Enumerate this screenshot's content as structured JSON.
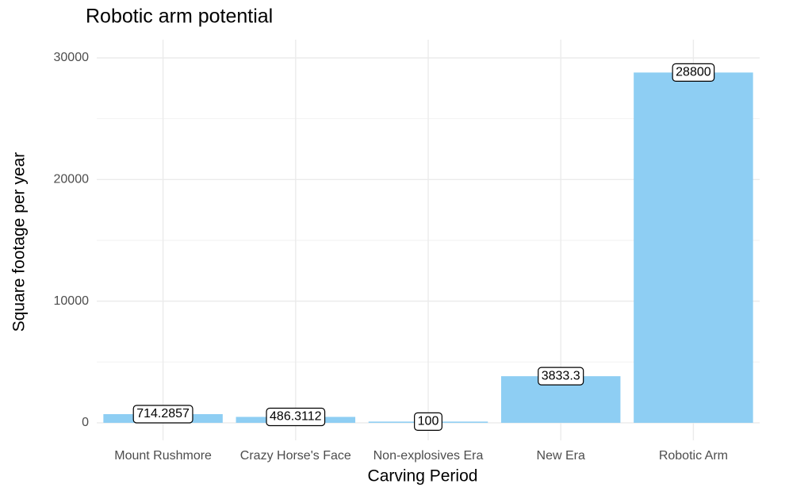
{
  "chart_data": {
    "type": "bar",
    "title": "Robotic arm potential",
    "x_label": "Carving Period",
    "y_label": "Square footage per year",
    "categories": [
      "Mount Rushmore",
      "Crazy Horse's Face",
      "Non-explosives Era",
      "New Era",
      "Robotic Arm"
    ],
    "values": [
      714.2857,
      486.3112,
      100,
      3833.3,
      28800
    ],
    "color": "#8ecef3",
    "ylim": [
      -1440,
      31500
    ],
    "yticks": [
      0,
      10000,
      20000,
      30000
    ],
    "grid": true
  }
}
